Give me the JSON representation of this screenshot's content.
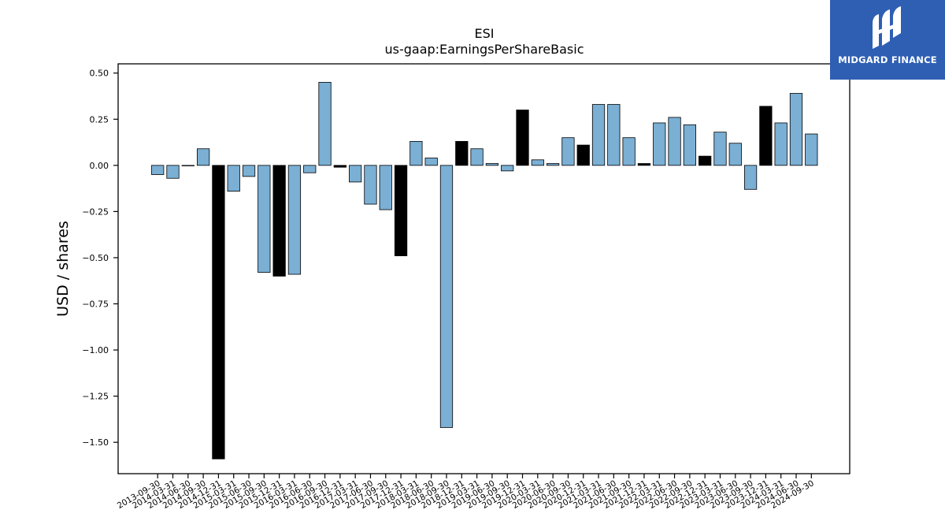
{
  "logo": {
    "text": "MIDGARD FINANCE",
    "color": "#2f5fb3"
  },
  "chart_data": {
    "type": "bar",
    "title": "ESI",
    "subtitle": "us-gaap:EarningsPerShareBasic",
    "ylabel": "USD / shares",
    "xlabel": "",
    "ylim": [
      -1.67,
      0.55
    ],
    "yticks": [
      0.5,
      0.25,
      0.0,
      -0.25,
      -0.5,
      -0.75,
      -1.0,
      -1.25,
      -1.5
    ],
    "ytick_labels": [
      "0.50",
      "0.25",
      "0.00",
      "−0.25",
      "−0.50",
      "−0.75",
      "−1.00",
      "−1.25",
      "−1.50"
    ],
    "grid": false,
    "colors": {
      "quarterly": "#7bafd4",
      "annual": "#000000",
      "edge": "#000000"
    },
    "categories": [
      "2013-09-30",
      "2014-03-31",
      "2014-06-30",
      "2014-09-30",
      "2014-12-31",
      "2015-03-31",
      "2015-06-30",
      "2015-09-30",
      "2015-12-31",
      "2016-03-31",
      "2016-06-30",
      "2016-09-30",
      "2016-12-31",
      "2017-03-31",
      "2017-06-30",
      "2017-09-30",
      "2017-12-31",
      "2018-03-31",
      "2018-06-30",
      "2018-09-30",
      "2018-12-31",
      "2019-03-31",
      "2019-06-30",
      "2019-09-30",
      "2019-12-31",
      "2020-03-31",
      "2020-06-30",
      "2020-09-30",
      "2020-12-31",
      "2021-03-31",
      "2021-06-30",
      "2021-09-30",
      "2021-12-31",
      "2022-03-31",
      "2022-06-30",
      "2022-09-30",
      "2022-12-31",
      "2023-03-31",
      "2023-06-30",
      "2023-09-30",
      "2023-12-31",
      "2024-03-31",
      "2024-06-30",
      "2024-09-30"
    ],
    "values": [
      -0.05,
      -0.07,
      0.0,
      0.09,
      -1.59,
      -0.14,
      -0.06,
      -0.58,
      -0.6,
      -0.59,
      -0.04,
      0.45,
      -0.01,
      -0.09,
      -0.21,
      -0.24,
      -0.49,
      0.13,
      0.04,
      -1.42,
      0.13,
      0.09,
      0.01,
      -0.03,
      0.3,
      0.03,
      0.01,
      0.15,
      0.11,
      0.33,
      0.33,
      0.15,
      0.01,
      0.23,
      0.26,
      0.22,
      0.05,
      0.18,
      0.12,
      -0.13,
      0.32,
      0.23,
      0.39,
      0.17
    ],
    "bar_kind": [
      "q",
      "q",
      "q",
      "q",
      "a",
      "q",
      "q",
      "q",
      "a",
      "q",
      "q",
      "q",
      "a",
      "q",
      "q",
      "q",
      "a",
      "q",
      "q",
      "q",
      "a",
      "q",
      "q",
      "q",
      "a",
      "q",
      "q",
      "q",
      "a",
      "q",
      "q",
      "q",
      "a",
      "q",
      "q",
      "q",
      "a",
      "q",
      "q",
      "q",
      "a",
      "q",
      "q",
      "q"
    ]
  }
}
